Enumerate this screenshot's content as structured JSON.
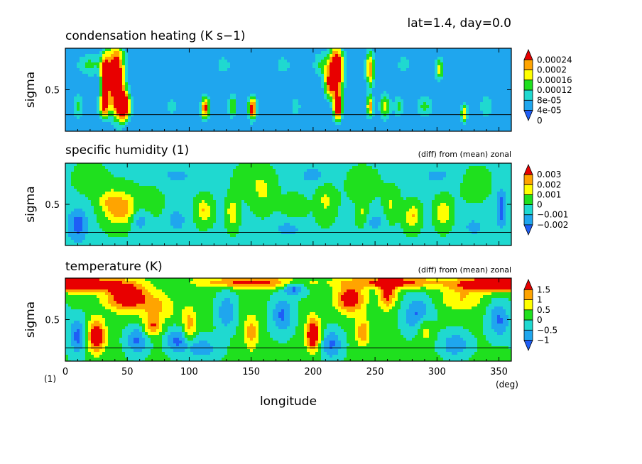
{
  "header": {
    "text": "lat=1.4, day=0.0"
  },
  "shared_axis": {
    "xlabel": "longitude",
    "x_unit": "(deg)",
    "y_unit": "(1)",
    "xticks": [
      0,
      50,
      100,
      150,
      200,
      250,
      300,
      350
    ],
    "xlim": [
      0,
      360
    ]
  },
  "chart_data": [
    {
      "type": "heatmap",
      "title": "condensation heating (K s−1)",
      "note": "",
      "ylabel": "sigma",
      "yticks": [
        0.5
      ],
      "ylim": [
        0.0,
        1.0
      ],
      "line_sigma": 0.2,
      "background_level": 0,
      "levels": [
        0,
        4e-05,
        8e-05,
        0.00012,
        0.00016,
        0.0002,
        0.00024
      ],
      "colorbar_labels": [
        "0.00024",
        "0.0002",
        "0.00016",
        "0.00012",
        "8e-05",
        "4e-05",
        "0"
      ],
      "colors": [
        "#1e5ef6",
        "#1fa6ee",
        "#1fd9d0",
        "#1fe01e",
        "#ffff00",
        "#ffa400",
        "#e80000"
      ],
      "blobs": [
        {
          "lon": 41,
          "sig": 0.65,
          "a": 0.00028,
          "sx": 5,
          "sy": 0.3
        },
        {
          "lon": 47,
          "sig": 0.3,
          "a": 0.00026,
          "sx": 4,
          "sy": 0.12
        },
        {
          "lon": 32,
          "sig": 0.65,
          "a": 0.00022,
          "sx": 2.5,
          "sy": 0.2
        },
        {
          "lon": 31,
          "sig": 0.3,
          "a": 0.00018,
          "sx": 3,
          "sy": 0.1
        },
        {
          "lon": 20,
          "sig": 0.8,
          "a": 9e-05,
          "sx": 8,
          "sy": 0.1
        },
        {
          "lon": 10,
          "sig": 0.3,
          "a": 9e-05,
          "sx": 3,
          "sy": 0.12
        },
        {
          "lon": 113,
          "sig": 0.28,
          "a": 0.00022,
          "sx": 2.5,
          "sy": 0.1
        },
        {
          "lon": 151,
          "sig": 0.28,
          "a": 0.00024,
          "sx": 2.5,
          "sy": 0.1
        },
        {
          "lon": 135,
          "sig": 0.3,
          "a": 0.00012,
          "sx": 2.5,
          "sy": 0.1
        },
        {
          "lon": 208,
          "sig": 0.8,
          "a": 9e-05,
          "sx": 6,
          "sy": 0.12
        },
        {
          "lon": 219,
          "sig": 0.75,
          "a": 0.00029,
          "sx": 4,
          "sy": 0.2
        },
        {
          "lon": 220,
          "sig": 0.3,
          "a": 0.00026,
          "sx": 2.5,
          "sy": 0.12
        },
        {
          "lon": 213,
          "sig": 0.55,
          "a": 0.00016,
          "sx": 3,
          "sy": 0.12
        },
        {
          "lon": 246,
          "sig": 0.75,
          "a": 0.0002,
          "sx": 2.5,
          "sy": 0.15
        },
        {
          "lon": 246,
          "sig": 0.3,
          "a": 0.00018,
          "sx": 2,
          "sy": 0.1
        },
        {
          "lon": 258,
          "sig": 0.3,
          "a": 0.00014,
          "sx": 3,
          "sy": 0.12
        },
        {
          "lon": 269,
          "sig": 0.3,
          "a": 9e-05,
          "sx": 3,
          "sy": 0.1
        },
        {
          "lon": 290,
          "sig": 0.3,
          "a": 9e-05,
          "sx": 5,
          "sy": 0.1
        },
        {
          "lon": 302,
          "sig": 0.75,
          "a": 0.00014,
          "sx": 2.5,
          "sy": 0.1
        },
        {
          "lon": 322,
          "sig": 0.22,
          "a": 0.00016,
          "sx": 2,
          "sy": 0.08
        },
        {
          "lon": 340,
          "sig": 0.3,
          "a": 8e-05,
          "sx": 4,
          "sy": 0.1
        },
        {
          "lon": 128,
          "sig": 0.8,
          "a": 7e-05,
          "sx": 4,
          "sy": 0.08
        },
        {
          "lon": 176,
          "sig": 0.8,
          "a": 7e-05,
          "sx": 4,
          "sy": 0.08
        },
        {
          "lon": 273,
          "sig": 0.8,
          "a": 7e-05,
          "sx": 4,
          "sy": 0.08
        },
        {
          "lon": 86,
          "sig": 0.3,
          "a": 7e-05,
          "sx": 3,
          "sy": 0.08
        },
        {
          "lon": 186,
          "sig": 0.3,
          "a": 7e-05,
          "sx": 3,
          "sy": 0.08
        }
      ]
    },
    {
      "type": "heatmap",
      "title": "specific humidity (1)",
      "note": "(diff) from (mean) zonal",
      "ylabel": "sigma",
      "yticks": [
        0.5
      ],
      "ylim": [
        0.0,
        1.0
      ],
      "line_sigma": 0.16,
      "background_level": -0.0001,
      "levels": [
        -0.002,
        -0.001,
        0,
        0.001,
        0.002,
        0.003
      ],
      "colorbar_labels": [
        "0.003",
        "0.002",
        "0.001",
        "0",
        "−0.001",
        "−0.002"
      ],
      "colors": [
        "#1e5ef6",
        "#1fa6ee",
        "#1fd9d0",
        "#1fe01e",
        "#ffff00",
        "#ffa400",
        "#e80000"
      ],
      "blobs": [
        {
          "lon": 45,
          "sig": 0.45,
          "a": 0.0028,
          "sx": 9,
          "sy": 0.14
        },
        {
          "lon": 35,
          "sig": 0.55,
          "a": 0.0012,
          "sx": 6,
          "sy": 0.1
        },
        {
          "lon": 112,
          "sig": 0.42,
          "a": 0.0022,
          "sx": 4,
          "sy": 0.1
        },
        {
          "lon": 135,
          "sig": 0.4,
          "a": 0.002,
          "sx": 3,
          "sy": 0.12
        },
        {
          "lon": 160,
          "sig": 0.65,
          "a": 0.0012,
          "sx": 6,
          "sy": 0.15
        },
        {
          "lon": 210,
          "sig": 0.55,
          "a": 0.0013,
          "sx": 5,
          "sy": 0.15
        },
        {
          "lon": 263,
          "sig": 0.5,
          "a": 0.0012,
          "sx": 4,
          "sy": 0.12
        },
        {
          "lon": 280,
          "sig": 0.35,
          "a": 0.0022,
          "sx": 4,
          "sy": 0.1
        },
        {
          "lon": 305,
          "sig": 0.4,
          "a": 0.0021,
          "sx": 4,
          "sy": 0.12
        },
        {
          "lon": 240,
          "sig": 0.4,
          "a": 0.0013,
          "sx": 3,
          "sy": 0.1
        },
        {
          "lon": 10,
          "sig": 0.25,
          "a": -0.0024,
          "sx": 6,
          "sy": 0.15
        },
        {
          "lon": 60,
          "sig": 0.3,
          "a": -0.0016,
          "sx": 5,
          "sy": 0.1
        },
        {
          "lon": 90,
          "sig": 0.3,
          "a": -0.0016,
          "sx": 5,
          "sy": 0.1
        },
        {
          "lon": 352,
          "sig": 0.45,
          "a": -0.0024,
          "sx": 3,
          "sy": 0.18
        },
        {
          "lon": 250,
          "sig": 0.28,
          "a": -0.0013,
          "sx": 5,
          "sy": 0.1
        },
        {
          "lon": 180,
          "sig": 0.2,
          "a": -0.0014,
          "sx": 8,
          "sy": 0.08
        },
        {
          "lon": 330,
          "sig": 0.22,
          "a": -0.0014,
          "sx": 6,
          "sy": 0.08
        },
        {
          "lon": 200,
          "sig": 0.85,
          "a": -0.0012,
          "sx": 10,
          "sy": 0.1
        },
        {
          "lon": 90,
          "sig": 0.85,
          "a": -0.0011,
          "sx": 12,
          "sy": 0.1
        },
        {
          "lon": 300,
          "sig": 0.85,
          "a": -0.0011,
          "sx": 12,
          "sy": 0.1
        },
        {
          "lon": 20,
          "sig": 0.8,
          "a": 0.0007,
          "sx": 8,
          "sy": 0.12
        },
        {
          "lon": 150,
          "sig": 0.8,
          "a": 0.0007,
          "sx": 8,
          "sy": 0.12
        },
        {
          "lon": 240,
          "sig": 0.75,
          "a": 0.0007,
          "sx": 8,
          "sy": 0.12
        },
        {
          "lon": 330,
          "sig": 0.75,
          "a": 0.0007,
          "sx": 8,
          "sy": 0.12
        },
        {
          "lon": 70,
          "sig": 0.55,
          "a": 0.0006,
          "sx": 6,
          "sy": 0.12
        },
        {
          "lon": 185,
          "sig": 0.45,
          "a": 0.0006,
          "sx": 6,
          "sy": 0.12
        }
      ]
    },
    {
      "type": "heatmap",
      "title": "temperature (K)",
      "note": "(diff) from (mean) zonal",
      "ylabel": "sigma",
      "yticks": [
        0.5
      ],
      "ylim": [
        0.0,
        1.0
      ],
      "line_sigma": 0.16,
      "background_level": 0.1,
      "levels": [
        -1,
        -0.5,
        0,
        0.5,
        1,
        1.5
      ],
      "colorbar_labels": [
        "1.5",
        "1",
        "0.5",
        "0",
        "−0.5",
        "−1"
      ],
      "colors": [
        "#1e5ef6",
        "#1fa6ee",
        "#1fd9d0",
        "#1fe01e",
        "#ffff00",
        "#ffa400",
        "#e80000"
      ],
      "blobs": [
        {
          "lon": 50,
          "sig": 0.78,
          "a": 2.2,
          "sx": 12,
          "sy": 0.12
        },
        {
          "lon": 15,
          "sig": 0.93,
          "a": 2.2,
          "sx": 20,
          "sy": 0.06
        },
        {
          "lon": 150,
          "sig": 0.95,
          "a": 1.6,
          "sx": 30,
          "sy": 0.05
        },
        {
          "lon": 340,
          "sig": 0.93,
          "a": 2.0,
          "sx": 20,
          "sy": 0.06
        },
        {
          "lon": 230,
          "sig": 0.75,
          "a": 2.0,
          "sx": 8,
          "sy": 0.12
        },
        {
          "lon": 260,
          "sig": 0.8,
          "a": 1.6,
          "sx": 5,
          "sy": 0.12
        },
        {
          "lon": 265,
          "sig": 0.95,
          "a": 1.8,
          "sx": 25,
          "sy": 0.05
        },
        {
          "lon": 25,
          "sig": 0.3,
          "a": 2.2,
          "sx": 5,
          "sy": 0.14
        },
        {
          "lon": 200,
          "sig": 0.32,
          "a": 2.4,
          "sx": 4,
          "sy": 0.14
        },
        {
          "lon": 70,
          "sig": 0.42,
          "a": 1.4,
          "sx": 5,
          "sy": 0.08
        },
        {
          "lon": 100,
          "sig": 0.45,
          "a": 1.1,
          "sx": 4,
          "sy": 0.15
        },
        {
          "lon": 150,
          "sig": 0.35,
          "a": 1.2,
          "sx": 4,
          "sy": 0.15
        },
        {
          "lon": 240,
          "sig": 0.35,
          "a": 1.3,
          "sx": 4,
          "sy": 0.12
        },
        {
          "lon": 290,
          "sig": 0.4,
          "a": 1.0,
          "sx": 5,
          "sy": 0.12
        },
        {
          "lon": 75,
          "sig": 0.65,
          "a": 0.9,
          "sx": 10,
          "sy": 0.12
        },
        {
          "lon": 320,
          "sig": 0.75,
          "a": 0.9,
          "sx": 12,
          "sy": 0.1
        },
        {
          "lon": 10,
          "sig": 0.3,
          "a": -1.3,
          "sx": 5,
          "sy": 0.15
        },
        {
          "lon": 58,
          "sig": 0.25,
          "a": -1.2,
          "sx": 6,
          "sy": 0.12
        },
        {
          "lon": 90,
          "sig": 0.25,
          "a": -1.2,
          "sx": 6,
          "sy": 0.1
        },
        {
          "lon": 130,
          "sig": 0.6,
          "a": -1.1,
          "sx": 5,
          "sy": 0.15
        },
        {
          "lon": 175,
          "sig": 0.55,
          "a": -1.2,
          "sx": 6,
          "sy": 0.15
        },
        {
          "lon": 185,
          "sig": 0.88,
          "a": -1.4,
          "sx": 6,
          "sy": 0.06
        },
        {
          "lon": 215,
          "sig": 0.2,
          "a": -1.2,
          "sx": 6,
          "sy": 0.12
        },
        {
          "lon": 285,
          "sig": 0.55,
          "a": -1.3,
          "sx": 8,
          "sy": 0.15
        },
        {
          "lon": 315,
          "sig": 0.2,
          "a": -1.1,
          "sx": 8,
          "sy": 0.1
        },
        {
          "lon": 350,
          "sig": 0.5,
          "a": -1.2,
          "sx": 6,
          "sy": 0.15
        },
        {
          "lon": 110,
          "sig": 0.15,
          "a": -0.9,
          "sx": 10,
          "sy": 0.1
        }
      ]
    }
  ]
}
